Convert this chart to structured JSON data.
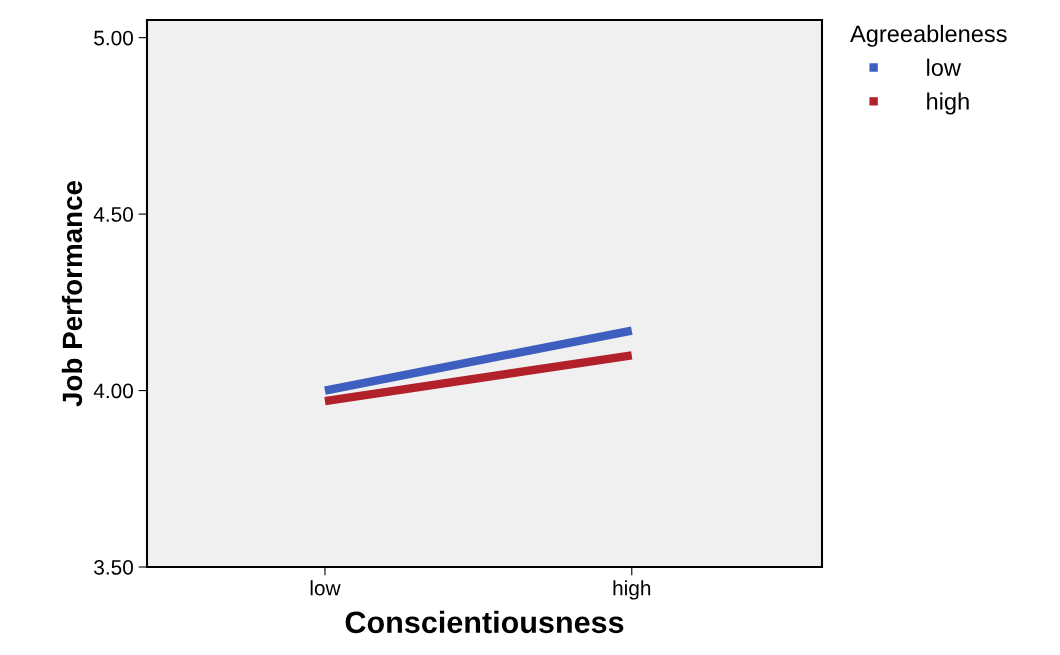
{
  "chart_data": {
    "type": "line",
    "xlabel": "Conscientiousness",
    "ylabel": "Job Performance",
    "legend_title": "Agreeableness",
    "categories": [
      "low",
      "high"
    ],
    "series": [
      {
        "name": "low",
        "color": "#3e5fbf",
        "values": [
          4.0,
          4.17
        ]
      },
      {
        "name": "high",
        "color": "#b2202a",
        "values": [
          3.97,
          4.1
        ]
      }
    ],
    "ylim": [
      3.5,
      5.05
    ],
    "yticks": [
      {
        "value": 3.5,
        "label": "3.50"
      },
      {
        "value": 4.0,
        "label": "4.00"
      },
      {
        "value": 4.5,
        "label": "4.50"
      },
      {
        "value": 5.0,
        "label": "5.00"
      }
    ],
    "grid": false,
    "legend": "top right",
    "marker": "none",
    "line_style": "solid"
  }
}
